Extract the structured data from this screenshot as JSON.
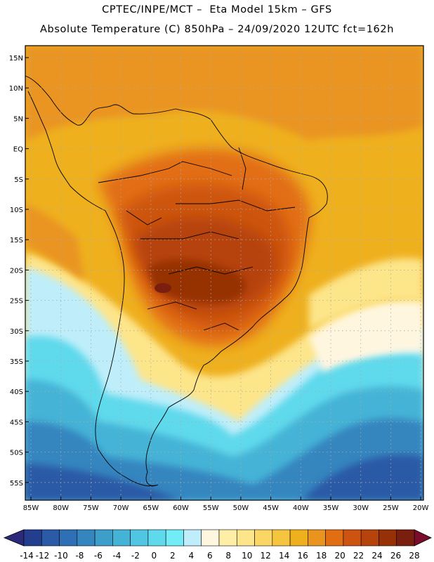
{
  "title_line1": "CPTEC/INPE/MCT –  Eta Model 15km – GFS",
  "title_line2": "Absolute Temperature (C) 850hPa – 24/09/2020 12UTC fct=162h",
  "lat_labels": [
    "15N",
    "10N",
    "5N",
    "EQ",
    "5S",
    "10S",
    "15S",
    "20S",
    "25S",
    "30S",
    "35S",
    "40S",
    "45S",
    "50S",
    "55S"
  ],
  "lon_labels": [
    "85W",
    "80W",
    "75W",
    "70W",
    "65W",
    "60W",
    "55W",
    "50W",
    "45W",
    "40W",
    "35W",
    "30W",
    "25W",
    "20W"
  ],
  "colorbar": {
    "labels": [
      "-14",
      "-12",
      "-10",
      "-8",
      "-6",
      "-4",
      "-2",
      "0",
      "2",
      "4",
      "6",
      "8",
      "10",
      "12",
      "14",
      "16",
      "18",
      "20",
      "22",
      "24",
      "26",
      "28"
    ],
    "colors": [
      "#233e8e",
      "#2b5aa6",
      "#2f6fb5",
      "#3585bf",
      "#3d9ec9",
      "#45b3d6",
      "#50c6e2",
      "#5fd9ec",
      "#72ecf6",
      "#bfeefa",
      "#fff6e0",
      "#ffeea6",
      "#fde58a",
      "#fbd665",
      "#f5c540",
      "#efb01e",
      "#ea9420",
      "#e26e14",
      "#cd5410",
      "#b6420c",
      "#963006",
      "#7a1e10"
    ],
    "under_color": "#2d2a7a",
    "over_color": "#7a0c2c"
  }
}
